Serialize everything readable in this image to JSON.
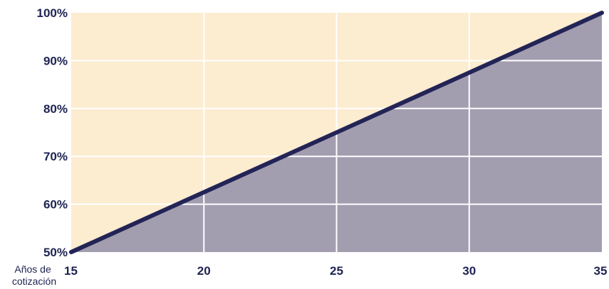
{
  "chart_data": {
    "type": "area",
    "x": [
      15,
      20,
      25,
      30,
      35
    ],
    "y": [
      50,
      62.5,
      75,
      87.5,
      100
    ],
    "xlim": [
      15,
      35
    ],
    "ylim": [
      50,
      100
    ],
    "x_ticks": [
      15,
      20,
      25,
      30,
      35
    ],
    "y_ticks": [
      50,
      60,
      70,
      80,
      90,
      100
    ],
    "y_tick_labels": [
      "50%",
      "60%",
      "70%",
      "80%",
      "90%",
      "100%"
    ],
    "x_tick_labels": [
      "15",
      "20",
      "25",
      "30",
      "35"
    ],
    "xlabel_lines": [
      "Años de",
      "cotización"
    ],
    "grid": true,
    "colors": {
      "background_fill": "#fcecd0",
      "area_fill": "#a39db0",
      "line": "#232456",
      "grid": "#ffffff",
      "text": "#1e2352"
    }
  }
}
